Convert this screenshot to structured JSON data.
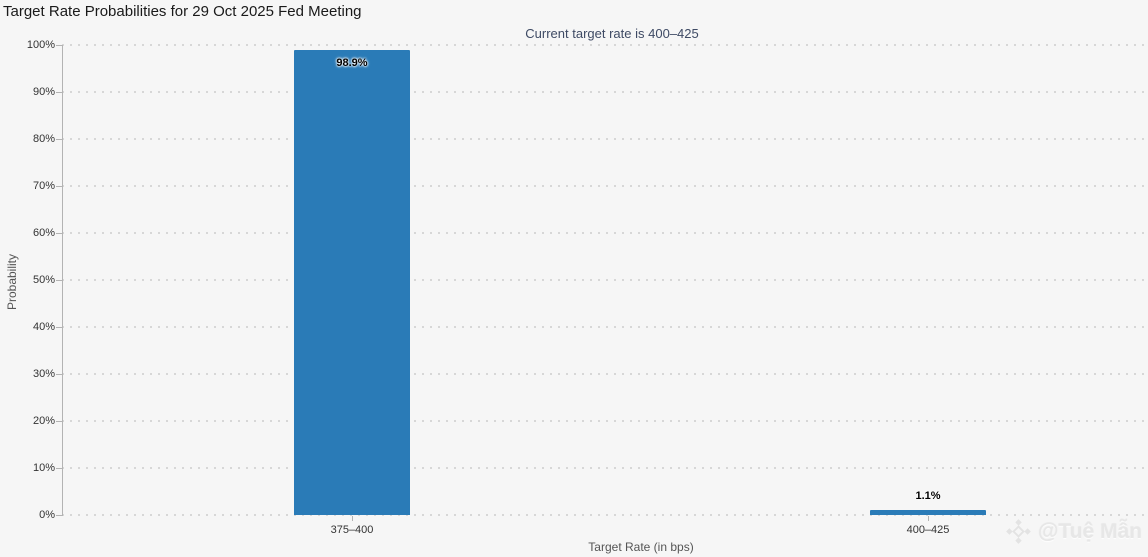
{
  "page": {
    "watermark": "@Tuệ Mẫn"
  },
  "chart_data": {
    "type": "bar",
    "title": "Target Rate Probabilities for 29 Oct 2025 Fed Meeting",
    "subtitle": "Current target rate is 400–425",
    "categories": [
      "375–400",
      "400–425"
    ],
    "values": [
      98.9,
      1.1
    ],
    "data_labels": [
      "98.9%",
      "1.1%"
    ],
    "xlabel": "Target Rate (in bps)",
    "ylabel": "Probability",
    "ylim": [
      0,
      100
    ],
    "ytick_step": 10,
    "ytick_labels": [
      "0%",
      "10%",
      "20%",
      "30%",
      "40%",
      "50%",
      "60%",
      "70%",
      "80%",
      "90%",
      "100%"
    ],
    "grid": "horizontal-dotted",
    "legend": "none",
    "bar_color": "#2a7bb7",
    "background_color": "#f6f6f6"
  }
}
